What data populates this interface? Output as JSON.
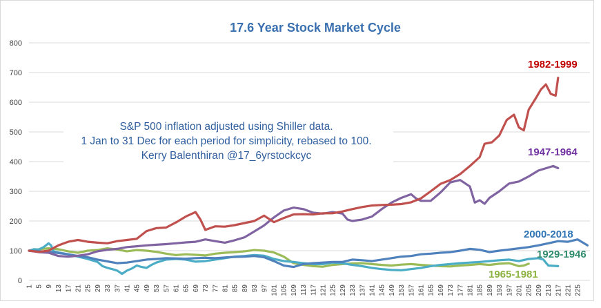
{
  "chart_data": {
    "type": "line",
    "title": "17.6 Year Stock Market Cycle",
    "annotation": [
      "S&P 500 inflation adjusted using Shiller data.",
      "1 Jan to 31 Dec for each period for simplicity, rebased to 100.",
      "Kerry Balenthiran @17_6yrstockcyc"
    ],
    "ylim": [
      0,
      800
    ],
    "yticks": [
      "0",
      "100",
      "200",
      "300",
      "400",
      "500",
      "600",
      "700",
      "800"
    ],
    "xlim": [
      1,
      230
    ],
    "xtick_start": 1,
    "xtick_step": 4,
    "xtick_end": 225,
    "grid": "horizontal",
    "legend": "labels next to series",
    "series": [
      {
        "name": "1982-1999",
        "color": "#c0504d",
        "points": [
          [
            1,
            100
          ],
          [
            5,
            96
          ],
          [
            9,
            100
          ],
          [
            13,
            118
          ],
          [
            17,
            130
          ],
          [
            21,
            136
          ],
          [
            25,
            130
          ],
          [
            29,
            127
          ],
          [
            33,
            125
          ],
          [
            37,
            132
          ],
          [
            41,
            136
          ],
          [
            45,
            140
          ],
          [
            49,
            166
          ],
          [
            53,
            176
          ],
          [
            57,
            178
          ],
          [
            61,
            195
          ],
          [
            65,
            215
          ],
          [
            69,
            230
          ],
          [
            71,
            205
          ],
          [
            73,
            170
          ],
          [
            77,
            182
          ],
          [
            81,
            181
          ],
          [
            85,
            186
          ],
          [
            89,
            193
          ],
          [
            93,
            200
          ],
          [
            97,
            218
          ],
          [
            101,
            196
          ],
          [
            105,
            210
          ],
          [
            109,
            222
          ],
          [
            113,
            223
          ],
          [
            117,
            222
          ],
          [
            121,
            226
          ],
          [
            125,
            226
          ],
          [
            129,
            232
          ],
          [
            133,
            240
          ],
          [
            137,
            247
          ],
          [
            141,
            252
          ],
          [
            145,
            254
          ],
          [
            149,
            255
          ],
          [
            153,
            257
          ],
          [
            157,
            263
          ],
          [
            161,
            276
          ],
          [
            165,
            300
          ],
          [
            169,
            325
          ],
          [
            173,
            338
          ],
          [
            177,
            358
          ],
          [
            181,
            385
          ],
          [
            185,
            415
          ],
          [
            187,
            460
          ],
          [
            190,
            465
          ],
          [
            193,
            488
          ],
          [
            196,
            540
          ],
          [
            199,
            558
          ],
          [
            201,
            515
          ],
          [
            203,
            505
          ],
          [
            205,
            575
          ],
          [
            208,
            615
          ],
          [
            210,
            643
          ],
          [
            212,
            660
          ],
          [
            214,
            628
          ],
          [
            216,
            622
          ],
          [
            217,
            682
          ]
        ]
      },
      {
        "name": "1947-1964",
        "color": "#8064a2",
        "points": [
          [
            1,
            100
          ],
          [
            5,
            95
          ],
          [
            9,
            93
          ],
          [
            13,
            82
          ],
          [
            17,
            80
          ],
          [
            21,
            83
          ],
          [
            25,
            88
          ],
          [
            29,
            98
          ],
          [
            33,
            103
          ],
          [
            37,
            106
          ],
          [
            41,
            112
          ],
          [
            45,
            115
          ],
          [
            49,
            118
          ],
          [
            53,
            120
          ],
          [
            57,
            122
          ],
          [
            61,
            125
          ],
          [
            65,
            128
          ],
          [
            69,
            130
          ],
          [
            73,
            138
          ],
          [
            77,
            132
          ],
          [
            81,
            127
          ],
          [
            85,
            135
          ],
          [
            89,
            145
          ],
          [
            93,
            165
          ],
          [
            97,
            185
          ],
          [
            101,
            212
          ],
          [
            105,
            235
          ],
          [
            109,
            245
          ],
          [
            113,
            240
          ],
          [
            117,
            228
          ],
          [
            121,
            225
          ],
          [
            125,
            230
          ],
          [
            129,
            225
          ],
          [
            131,
            205
          ],
          [
            133,
            200
          ],
          [
            137,
            205
          ],
          [
            141,
            215
          ],
          [
            145,
            240
          ],
          [
            149,
            262
          ],
          [
            153,
            278
          ],
          [
            157,
            290
          ],
          [
            159,
            276
          ],
          [
            161,
            268
          ],
          [
            165,
            268
          ],
          [
            169,
            296
          ],
          [
            173,
            330
          ],
          [
            177,
            338
          ],
          [
            181,
            316
          ],
          [
            183,
            262
          ],
          [
            185,
            270
          ],
          [
            187,
            258
          ],
          [
            189,
            278
          ],
          [
            193,
            300
          ],
          [
            197,
            326
          ],
          [
            201,
            333
          ],
          [
            205,
            350
          ],
          [
            209,
            370
          ],
          [
            213,
            380
          ],
          [
            215,
            385
          ],
          [
            217,
            378
          ]
        ]
      },
      {
        "name": "2000-2018",
        "color": "#4f81bd",
        "points": [
          [
            1,
            100
          ],
          [
            5,
            98
          ],
          [
            9,
            97
          ],
          [
            13,
            92
          ],
          [
            17,
            88
          ],
          [
            21,
            82
          ],
          [
            25,
            78
          ],
          [
            29,
            70
          ],
          [
            33,
            64
          ],
          [
            37,
            58
          ],
          [
            41,
            60
          ],
          [
            45,
            65
          ],
          [
            49,
            70
          ],
          [
            53,
            72
          ],
          [
            57,
            75
          ],
          [
            61,
            74
          ],
          [
            65,
            73
          ],
          [
            69,
            75
          ],
          [
            73,
            76
          ],
          [
            77,
            75
          ],
          [
            81,
            77
          ],
          [
            85,
            79
          ],
          [
            89,
            80
          ],
          [
            93,
            82
          ],
          [
            97,
            78
          ],
          [
            101,
            65
          ],
          [
            105,
            50
          ],
          [
            109,
            45
          ],
          [
            113,
            55
          ],
          [
            117,
            58
          ],
          [
            121,
            60
          ],
          [
            125,
            62
          ],
          [
            129,
            62
          ],
          [
            133,
            70
          ],
          [
            137,
            68
          ],
          [
            141,
            65
          ],
          [
            145,
            70
          ],
          [
            149,
            75
          ],
          [
            153,
            80
          ],
          [
            157,
            82
          ],
          [
            161,
            88
          ],
          [
            165,
            90
          ],
          [
            169,
            93
          ],
          [
            173,
            95
          ],
          [
            177,
            100
          ],
          [
            181,
            106
          ],
          [
            185,
            103
          ],
          [
            189,
            95
          ],
          [
            193,
            100
          ],
          [
            197,
            104
          ],
          [
            201,
            108
          ],
          [
            205,
            112
          ],
          [
            209,
            118
          ],
          [
            213,
            125
          ],
          [
            217,
            132
          ],
          [
            221,
            130
          ],
          [
            225,
            138
          ],
          [
            229,
            118
          ]
        ]
      },
      {
        "name": "1929-1946",
        "color": "#4bacc6",
        "points": [
          [
            1,
            100
          ],
          [
            3,
            105
          ],
          [
            5,
            104
          ],
          [
            7,
            112
          ],
          [
            9,
            125
          ],
          [
            10,
            118
          ],
          [
            11,
            98
          ],
          [
            13,
            94
          ],
          [
            17,
            88
          ],
          [
            21,
            80
          ],
          [
            25,
            72
          ],
          [
            29,
            62
          ],
          [
            31,
            48
          ],
          [
            33,
            42
          ],
          [
            35,
            38
          ],
          [
            37,
            33
          ],
          [
            39,
            22
          ],
          [
            41,
            33
          ],
          [
            43,
            40
          ],
          [
            45,
            50
          ],
          [
            47,
            45
          ],
          [
            49,
            42
          ],
          [
            51,
            52
          ],
          [
            53,
            60
          ],
          [
            57,
            70
          ],
          [
            61,
            72
          ],
          [
            65,
            70
          ],
          [
            69,
            63
          ],
          [
            73,
            65
          ],
          [
            77,
            70
          ],
          [
            81,
            75
          ],
          [
            85,
            80
          ],
          [
            89,
            82
          ],
          [
            93,
            85
          ],
          [
            97,
            83
          ],
          [
            101,
            72
          ],
          [
            105,
            65
          ],
          [
            109,
            62
          ],
          [
            113,
            58
          ],
          [
            117,
            55
          ],
          [
            121,
            55
          ],
          [
            125,
            60
          ],
          [
            129,
            58
          ],
          [
            133,
            52
          ],
          [
            137,
            48
          ],
          [
            141,
            42
          ],
          [
            145,
            38
          ],
          [
            149,
            35
          ],
          [
            153,
            34
          ],
          [
            157,
            38
          ],
          [
            161,
            42
          ],
          [
            165,
            48
          ],
          [
            169,
            52
          ],
          [
            173,
            55
          ],
          [
            177,
            58
          ],
          [
            181,
            60
          ],
          [
            185,
            62
          ],
          [
            189,
            65
          ],
          [
            193,
            68
          ],
          [
            197,
            70
          ],
          [
            201,
            65
          ],
          [
            205,
            72
          ],
          [
            209,
            75
          ],
          [
            211,
            70
          ],
          [
            213,
            50
          ],
          [
            217,
            48
          ]
        ]
      },
      {
        "name": "1965-1981",
        "color": "#9bbb59",
        "points": [
          [
            1,
            100
          ],
          [
            5,
            105
          ],
          [
            9,
            108
          ],
          [
            13,
            105
          ],
          [
            17,
            98
          ],
          [
            21,
            93
          ],
          [
            25,
            100
          ],
          [
            29,
            102
          ],
          [
            33,
            108
          ],
          [
            37,
            104
          ],
          [
            41,
            98
          ],
          [
            45,
            102
          ],
          [
            49,
            100
          ],
          [
            53,
            96
          ],
          [
            57,
            90
          ],
          [
            61,
            85
          ],
          [
            65,
            88
          ],
          [
            69,
            86
          ],
          [
            73,
            84
          ],
          [
            77,
            90
          ],
          [
            81,
            93
          ],
          [
            85,
            95
          ],
          [
            89,
            98
          ],
          [
            93,
            102
          ],
          [
            97,
            100
          ],
          [
            101,
            94
          ],
          [
            105,
            80
          ],
          [
            109,
            58
          ],
          [
            113,
            52
          ],
          [
            117,
            48
          ],
          [
            121,
            46
          ],
          [
            125,
            52
          ],
          [
            129,
            55
          ],
          [
            133,
            57
          ],
          [
            137,
            58
          ],
          [
            141,
            55
          ],
          [
            145,
            52
          ],
          [
            149,
            50
          ],
          [
            153,
            53
          ],
          [
            157,
            55
          ],
          [
            161,
            52
          ],
          [
            165,
            50
          ],
          [
            169,
            48
          ],
          [
            173,
            47
          ],
          [
            177,
            50
          ],
          [
            181,
            52
          ],
          [
            185,
            55
          ],
          [
            189,
            52
          ],
          [
            193,
            56
          ],
          [
            197,
            58
          ],
          [
            201,
            48
          ],
          [
            203,
            50
          ],
          [
            205,
            56
          ]
        ]
      }
    ],
    "series_labels": [
      {
        "text": "1982-1999",
        "color": "#c00000"
      },
      {
        "text": "1947-1964",
        "color": "#7030a0"
      },
      {
        "text": "2000-2018",
        "color": "#2e75b6"
      },
      {
        "text": "1929-1946",
        "color": "#2e8b6e"
      },
      {
        "text": "1965-1981",
        "color": "#8db341"
      }
    ]
  }
}
